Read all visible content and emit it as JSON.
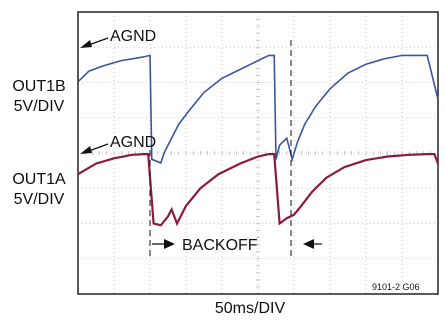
{
  "chart_data": {
    "type": "line",
    "title": "",
    "x_scale_label": "50ms/DIV",
    "figure_id": "9101-2 G06",
    "grid": {
      "divisions_x": 10,
      "divisions_y": 8,
      "shown": true
    },
    "x_divisions_range": [
      0,
      10
    ],
    "series": [
      {
        "name": "OUT1B",
        "scale": "5V/DIV",
        "ground_label": "AGND",
        "color": "#3a55a4",
        "x_div": [
          0,
          0.3,
          0.7,
          1.2,
          1.8,
          2.0,
          2.05,
          2.3,
          2.4,
          2.55,
          2.8,
          3.1,
          3.5,
          4.0,
          4.5,
          5.0,
          5.3,
          5.45,
          5.5,
          5.6,
          5.8,
          5.95,
          6.1,
          6.3,
          6.6,
          7.0,
          7.5,
          8.0,
          8.5,
          9.0,
          9.4,
          9.7,
          10
        ],
        "y_div": [
          -0.8,
          -0.5,
          -0.35,
          -0.2,
          -0.1,
          -0.05,
          -3.0,
          -3.1,
          -2.8,
          -2.5,
          -2.0,
          -1.6,
          -1.1,
          -0.7,
          -0.45,
          -0.2,
          -0.05,
          -0.05,
          -3.0,
          -2.6,
          -2.4,
          -3.0,
          -2.5,
          -2.0,
          -1.5,
          -1.0,
          -0.55,
          -0.3,
          -0.15,
          -0.05,
          -0.05,
          -0.05,
          -1.3
        ]
      },
      {
        "name": "OUT1A",
        "scale": "5V/DIV",
        "ground_label": "AGND",
        "color": "#8b1a3c",
        "x_div": [
          0,
          0.5,
          1.0,
          1.5,
          1.85,
          1.95,
          2.1,
          2.3,
          2.5,
          2.6,
          2.75,
          3.0,
          3.4,
          3.9,
          4.5,
          5.0,
          5.3,
          5.45,
          5.6,
          5.8,
          6.0,
          6.2,
          6.5,
          6.9,
          7.4,
          8.0,
          8.6,
          9.2,
          9.7,
          9.9,
          10
        ],
        "y_div": [
          -0.6,
          -0.3,
          -0.15,
          -0.05,
          -0.03,
          -0.03,
          -2.0,
          -2.05,
          -1.8,
          -1.6,
          -2.0,
          -1.5,
          -1.0,
          -0.6,
          -0.3,
          -0.1,
          -0.03,
          -0.03,
          -2.0,
          -1.85,
          -1.75,
          -1.5,
          -1.1,
          -0.7,
          -0.4,
          -0.2,
          -0.1,
          -0.05,
          -0.03,
          -0.03,
          -0.3
        ]
      }
    ],
    "annotations": [
      {
        "text": "BACKOFF",
        "x_from_div": 1.95,
        "x_to_div": 5.45
      }
    ]
  },
  "labels": {
    "out1b_name": "OUT1B",
    "out1b_scale": "5V/DIV",
    "out1a_name": "OUT1A",
    "out1a_scale": "5V/DIV",
    "agnd_top": "AGND",
    "agnd_bottom": "AGND",
    "backoff": "BACKOFF"
  },
  "colors": {
    "grid": "#bdbdbd",
    "frame": "#222222",
    "blue": "#3a55a4",
    "red": "#8b1a3c"
  }
}
